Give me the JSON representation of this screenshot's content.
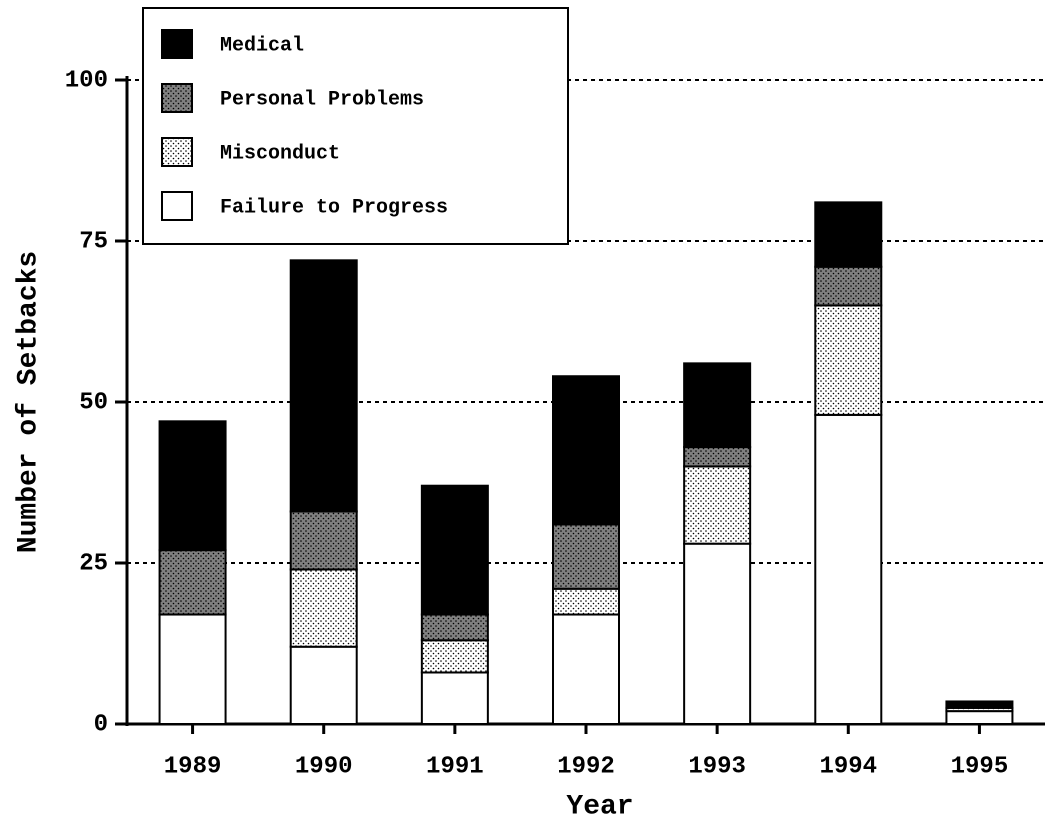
{
  "chart_data": {
    "type": "stacked_bar",
    "x_label": "Year",
    "y_label": "Number of Setbacks",
    "categories": [
      "1989",
      "1990",
      "1991",
      "1992",
      "1993",
      "1994",
      "1995"
    ],
    "series": [
      {
        "name": "Failure to Progress",
        "color": "#ffffff",
        "values": [
          17,
          12,
          8,
          17,
          28,
          48,
          2
        ]
      },
      {
        "name": "Misconduct",
        "color": "#ffffff",
        "pattern": "dots",
        "values": [
          0,
          12,
          5,
          4,
          12,
          17,
          0.5
        ]
      },
      {
        "name": "Personal Problems",
        "color": "#808080",
        "pattern": "dots",
        "values": [
          10,
          9,
          4,
          10,
          3,
          6,
          0
        ]
      },
      {
        "name": "Medical",
        "color": "#000000",
        "values": [
          20,
          39,
          20,
          23,
          13,
          10,
          1
        ]
      }
    ],
    "ylim": [
      0,
      100
    ],
    "yticks": [
      0,
      25,
      50,
      75,
      100
    ],
    "grid": true,
    "legend": "upper left"
  }
}
